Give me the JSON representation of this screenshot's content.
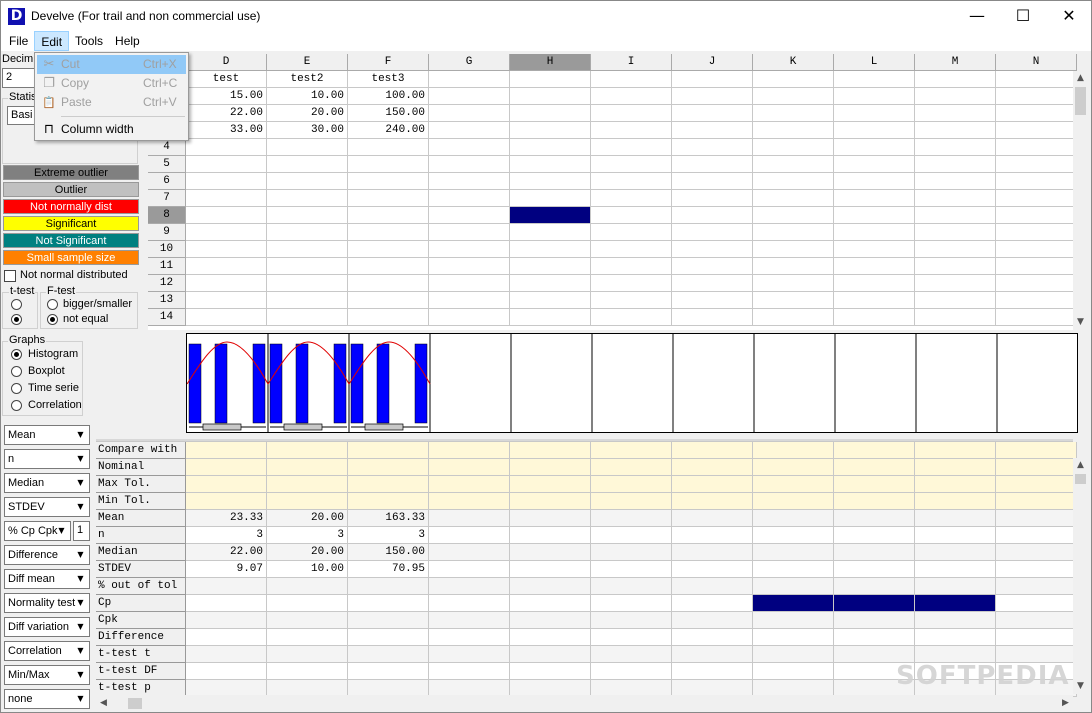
{
  "window": {
    "title": "Develve (For trail and non commercial use)",
    "logo": "D",
    "minimize": "—",
    "maximize": "☐",
    "close": "✕"
  },
  "menubar": [
    "File",
    "Edit",
    "Tools",
    "Help"
  ],
  "edit_menu": [
    {
      "icon": "scissors-icon",
      "glyph": "✂",
      "label": "Cut",
      "shortcut": "Ctrl+X",
      "disabled": true
    },
    {
      "icon": "copy-icon",
      "glyph": "❐",
      "label": "Copy",
      "shortcut": "Ctrl+C",
      "disabled": true
    },
    {
      "icon": "paste-icon",
      "glyph": "📋",
      "label": "Paste",
      "shortcut": "Ctrl+V",
      "disabled": true
    },
    {
      "icon": "column-width-icon",
      "glyph": "⊓",
      "label": "Column width",
      "shortcut": "",
      "disabled": false
    }
  ],
  "left_panel": {
    "decimals_label": "Decim",
    "decimals_value": "2",
    "statistics_label": "Statis",
    "statistics_value": "Basi",
    "legend": [
      {
        "label": "Extreme outlier",
        "bg": "#808080",
        "fg": "#000000"
      },
      {
        "label": "Outlier",
        "bg": "#c0c0c0",
        "fg": "#000000"
      },
      {
        "label": "Not normally dist",
        "bg": "#ff0000",
        "fg": "#ffffff"
      },
      {
        "label": "Significant",
        "bg": "#ffff00",
        "fg": "#000000"
      },
      {
        "label": "Not Significant",
        "bg": "#008080",
        "fg": "#ffffff"
      },
      {
        "label": "Small sample size",
        "bg": "#ff8000",
        "fg": "#ffffff"
      }
    ],
    "not_normal_label": "Not normal distributed",
    "ttest_label": "t-test",
    "ftest_label": "F-test",
    "ftest_options": [
      "bigger/smaller",
      "not equal"
    ],
    "graphs_label": "Graphs",
    "graph_options": [
      "Histogram",
      "Boxplot",
      "Time serie",
      "Correlation"
    ],
    "dropdowns": [
      "Mean",
      "n",
      "Median",
      "STDEV",
      "% Cp Cpk",
      "Difference",
      "Diff mean",
      "Normality test",
      "Diff variation",
      "Correlation",
      "Min/Max",
      "none"
    ],
    "cp_value": "1"
  },
  "columns": [
    "D",
    "E",
    "F",
    "G",
    "H",
    "I",
    "J",
    "K",
    "L",
    "M",
    "N"
  ],
  "row_numbers": [
    "4",
    "5",
    "6",
    "7",
    "8",
    "9",
    "10",
    "11",
    "12",
    "13",
    "14"
  ],
  "data_header": [
    "test",
    "test2",
    "test3"
  ],
  "data_rows": [
    [
      "15.00",
      "10.00",
      "100.00"
    ],
    [
      "22.00",
      "20.00",
      "150.00"
    ],
    [
      "33.00",
      "30.00",
      "240.00"
    ]
  ],
  "stats_labels": [
    "Compare with",
    "Nominal",
    "Max Tol.",
    "Min Tol.",
    "Mean",
    "n",
    "Median",
    "STDEV",
    "% out of tol",
    "Cp",
    "Cpk",
    "Difference",
    "t-test t",
    "t-test DF",
    "t-test p"
  ],
  "stats": {
    "Mean": [
      "23.33",
      "20.00",
      "163.33"
    ],
    "n": [
      "3",
      "3",
      "3"
    ],
    "Median": [
      "22.00",
      "20.00",
      "150.00"
    ],
    "STDEV": [
      "9.07",
      "10.00",
      "70.95"
    ]
  },
  "watermark": "SOFTPEDIA",
  "colors": {
    "selection": "#000080",
    "tolerance_bg": "#fff8d8",
    "bar": "#0000ff",
    "curve": "#e00000"
  }
}
